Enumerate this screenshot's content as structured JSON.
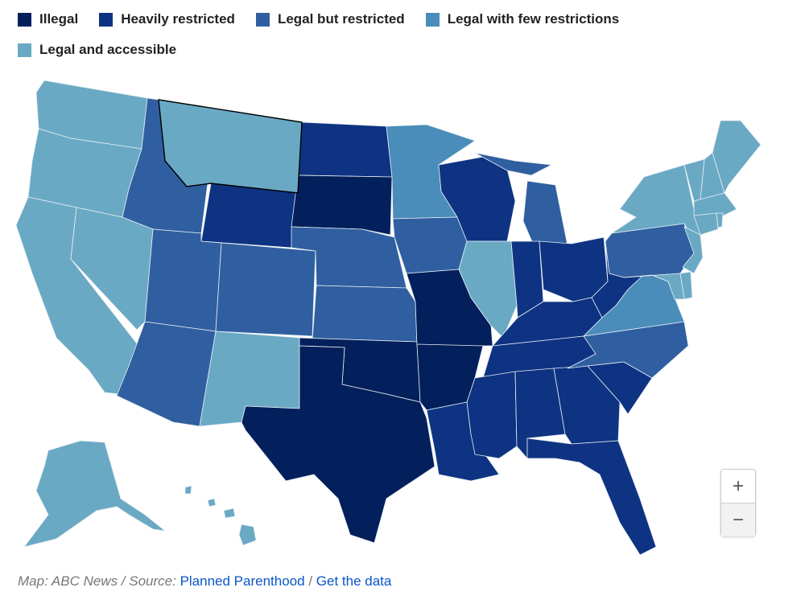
{
  "legend": [
    {
      "key": "illegal",
      "label": "Illegal",
      "color": "#03205c"
    },
    {
      "key": "heavy",
      "label": "Heavily restricted",
      "color": "#0e3382"
    },
    {
      "key": "restricted",
      "label": "Legal but restricted",
      "color": "#2f5fa0"
    },
    {
      "key": "few",
      "label": "Legal with few restrictions",
      "color": "#4a8cba"
    },
    {
      "key": "accessible",
      "label": "Legal and accessible",
      "color": "#6aa9c4"
    }
  ],
  "map_data": {
    "highlighted_state": "MT",
    "states": {
      "WA": "accessible",
      "OR": "accessible",
      "CA": "accessible",
      "NV": "accessible",
      "ID": "restricted",
      "MT": "accessible",
      "WY": "heavy",
      "UT": "restricted",
      "CO": "restricted",
      "AZ": "restricted",
      "NM": "accessible",
      "ND": "heavy",
      "SD": "illegal",
      "NE": "restricted",
      "KS": "restricted",
      "OK": "illegal",
      "TX": "illegal",
      "MN": "few",
      "IA": "restricted",
      "MO": "illegal",
      "AR": "illegal",
      "LA": "heavy",
      "WI": "heavy",
      "IL": "accessible",
      "MI": "restricted",
      "IN": "heavy",
      "OH": "heavy",
      "KY": "heavy",
      "TN": "heavy",
      "MS": "heavy",
      "AL": "heavy",
      "GA": "heavy",
      "FL": "heavy",
      "SC": "heavy",
      "NC": "restricted",
      "VA": "few",
      "WV": "heavy",
      "PA": "restricted",
      "NY": "accessible",
      "VT": "accessible",
      "NH": "accessible",
      "ME": "accessible",
      "MA": "accessible",
      "CT": "accessible",
      "RI": "accessible",
      "NJ": "accessible",
      "DE": "accessible",
      "MD": "accessible",
      "AK": "accessible",
      "HI": "accessible"
    }
  },
  "zoom": {
    "in": "+",
    "out": "−"
  },
  "footer": {
    "credit": "Map: ABC News / Source:",
    "source_link": "Planned Parenthood",
    "sep": "/",
    "data_link": "Get the data"
  }
}
